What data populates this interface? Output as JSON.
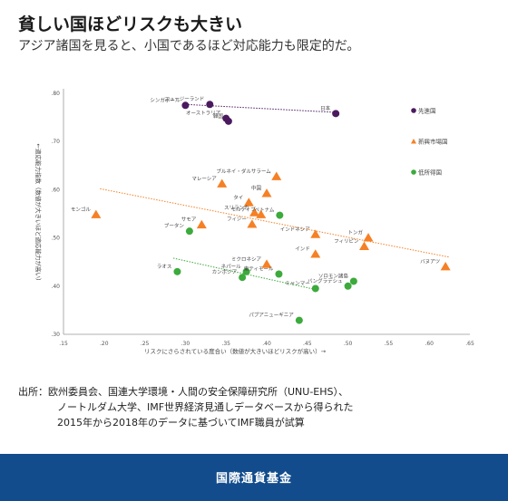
{
  "header": {
    "title": "貧しい国ほどリスクも大きい",
    "subtitle": "アジア諸国を見ると、小国であるほど対応能力も限定的だ。"
  },
  "source": {
    "line1": "出所：欧州委員会、国連大学環境・人間の安全保障研究所（UNU-EHS）、",
    "line2": "ノートルダム大学、IMF世界経済見通しデータベースから得られた",
    "line3": "2015年から2018年のデータに基づいてIMF職員が試算"
  },
  "footer": {
    "text": "国際通貨基金"
  },
  "colors": {
    "advanced": "#4b1a5e",
    "emerging": "#f58025",
    "low_income": "#3caa3c",
    "footer": "#124c8d"
  },
  "chart_data": {
    "type": "scatter",
    "xlabel": "リスクにさらされている度合い（数値が大きいほどリスクが高い）→",
    "ylabel": "←適応能力指数（数値が大きいほど適応能力が高い）",
    "xlim": [
      0.15,
      0.65
    ],
    "ylim": [
      0.3,
      0.8
    ],
    "xticks": [
      ".15",
      ".20",
      ".25",
      ".30",
      ".35",
      ".40",
      ".45",
      ".50",
      ".55",
      ".60",
      ".65"
    ],
    "yticks": [
      ".30",
      ".40",
      ".50",
      ".60",
      ".70",
      ".80"
    ],
    "legend_position": "right",
    "series": [
      {
        "name": "先進国",
        "marker": "circle",
        "color": "#4b1a5e",
        "trend": [
          [
            0.3,
            0.777
          ],
          [
            0.49,
            0.76
          ]
        ],
        "points": [
          {
            "label": "シンガポール",
            "x": 0.3,
            "y": 0.775
          },
          {
            "label": "ニュージーランド",
            "x": 0.33,
            "y": 0.777
          },
          {
            "label": "オーストラリア",
            "x": 0.35,
            "y": 0.748
          },
          {
            "label": "韓国",
            "x": 0.353,
            "y": 0.742
          },
          {
            "label": "日本",
            "x": 0.485,
            "y": 0.758
          }
        ]
      },
      {
        "name": "新興市場国",
        "marker": "triangle",
        "color": "#f58025",
        "trend": [
          [
            0.195,
            0.602
          ],
          [
            0.625,
            0.46
          ]
        ],
        "points": [
          {
            "label": "モンゴル",
            "x": 0.19,
            "y": 0.548
          },
          {
            "label": "マレーシア",
            "x": 0.345,
            "y": 0.612
          },
          {
            "label": "ブルネイ・ダルサラーム",
            "x": 0.412,
            "y": 0.627
          },
          {
            "label": "タイ",
            "x": 0.378,
            "y": 0.573
          },
          {
            "label": "中国",
            "x": 0.4,
            "y": 0.592
          },
          {
            "label": "スリランカ",
            "x": 0.385,
            "y": 0.552
          },
          {
            "label": "モルディブ",
            "x": 0.393,
            "y": 0.548
          },
          {
            "label": "サモア",
            "x": 0.32,
            "y": 0.527
          },
          {
            "label": "フィジー",
            "x": 0.382,
            "y": 0.528
          },
          {
            "label": "インドネシア",
            "x": 0.46,
            "y": 0.507
          },
          {
            "label": "トンガ",
            "x": 0.525,
            "y": 0.5
          },
          {
            "label": "フィリピン",
            "x": 0.52,
            "y": 0.482
          },
          {
            "label": "インド",
            "x": 0.46,
            "y": 0.466
          },
          {
            "label": "ミクロネシア",
            "x": 0.4,
            "y": 0.445
          },
          {
            "label": "バヌアツ",
            "x": 0.62,
            "y": 0.44
          }
        ]
      },
      {
        "name": "低所得国",
        "marker": "circle",
        "color": "#3caa3c",
        "trend": [
          [
            0.285,
            0.458
          ],
          [
            0.46,
            0.393
          ]
        ],
        "points": [
          {
            "label": "ベトナム",
            "x": 0.416,
            "y": 0.547
          },
          {
            "label": "ブータン",
            "x": 0.305,
            "y": 0.514
          },
          {
            "label": "ラオス",
            "x": 0.29,
            "y": 0.43
          },
          {
            "label": "ネパール",
            "x": 0.375,
            "y": 0.43
          },
          {
            "label": "東ティモール",
            "x": 0.415,
            "y": 0.425
          },
          {
            "label": "カンボジア",
            "x": 0.37,
            "y": 0.418
          },
          {
            "label": "ミャンマー",
            "x": 0.46,
            "y": 0.395
          },
          {
            "label": "ソロモン諸島",
            "x": 0.507,
            "y": 0.41
          },
          {
            "label": "バングラデシュ",
            "x": 0.5,
            "y": 0.4
          },
          {
            "label": "パプアニューギニア",
            "x": 0.44,
            "y": 0.329
          }
        ]
      }
    ]
  }
}
